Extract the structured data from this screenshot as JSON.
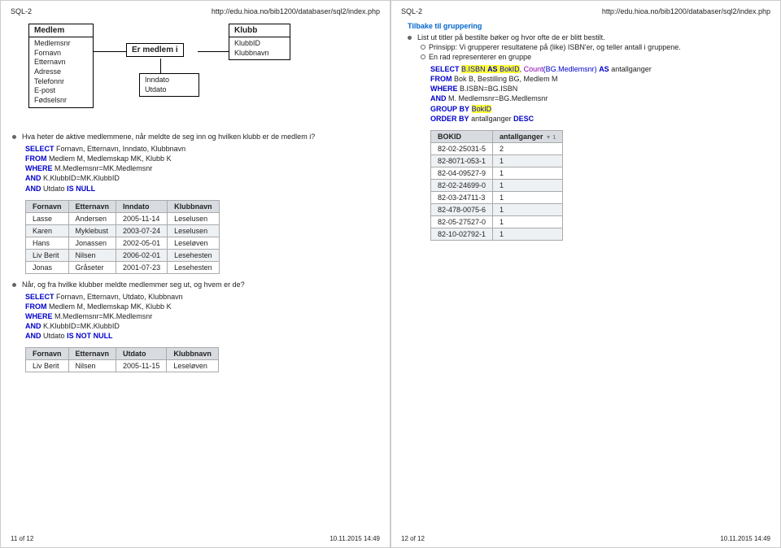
{
  "header": {
    "doc_title": "SQL-2",
    "url": "http://edu.hioa.no/bib1200/databaser/sql2/index.php"
  },
  "left": {
    "entity_medlem_title": "Medlem",
    "entity_medlem_attrs": "Medlemsnr\nFornavn\nEtternavn\nAdresse\nTelefonnr\nE-post\nFødselsnr",
    "entity_klubb_title": "Klubb",
    "entity_klubb_attrs": "KlubbID\nKlubbnavn",
    "relation_label": "Er medlem i",
    "relation_attrs": "Inndato\nUtdato",
    "q1_text": "Hva heter de aktive medlemmene, når meldte de seg inn og hvilken klubb er de medlem i?",
    "sql1": {
      "select": "Fornavn, Etternavn, Inndato, Klubbnavn",
      "from": "Medlem M, Medlemskap MK, Klubb K",
      "where": "M.Medlemsnr=MK.Medlemsnr",
      "and1": "K.KlubbID=MK.KlubbID",
      "and2": "Utdato"
    },
    "table1": {
      "cols": [
        "Fornavn",
        "Etternavn",
        "Inndato",
        "Klubbnavn"
      ],
      "rows": [
        [
          "Lasse",
          "Andersen",
          "2005-11-14",
          "Leselusen"
        ],
        [
          "Karen",
          "Myklebust",
          "2003-07-24",
          "Leselusen"
        ],
        [
          "Hans",
          "Jonassen",
          "2002-05-01",
          "Leseløven"
        ],
        [
          "Liv Berit",
          "Nilsen",
          "2006-02-01",
          "Lesehesten"
        ],
        [
          "Jonas",
          "Gråseter",
          "2001-07-23",
          "Lesehesten"
        ]
      ]
    },
    "q2_text": "Når, og fra hvilke klubber meldte medlemmer seg ut, og hvem er de?",
    "sql2": {
      "select": "Fornavn, Etternavn, Utdato, Klubbnavn",
      "from": "Medlem M, Medlemskap MK, Klubb K",
      "where": "M.Medlemsnr=MK.Medlemsnr",
      "and1": "K.KlubbID=MK.KlubbID",
      "and2": "Utdato"
    },
    "table2": {
      "cols": [
        "Fornavn",
        "Etternavn",
        "Utdato",
        "Klubbnavn"
      ],
      "rows": [
        [
          "Liv Berit",
          "Nilsen",
          "2005-11-15",
          "Leseløven"
        ]
      ]
    },
    "page_num": "11 of 12",
    "timestamp": "10.11.2015 14:49"
  },
  "right": {
    "back_link": "Tilbake til gruppering",
    "q1_text": "List ut titler på bestilte bøker og hvor ofte de er blitt bestilt.",
    "sub1": "Prinsipp: Vi grupperer resultatene på (like) ISBN'er, og teller antall i gruppene.",
    "sub2": "En rad representerer en gruppe",
    "sql": {
      "select_p1": "B.ISBN",
      "select_kw_as": "AS",
      "select_bokid": "BokID",
      "select_count": "Count",
      "select_arg": "(BG.Medlemsnr)",
      "select_as2": "antallganger",
      "from": "Bok B, Bestilling BG, Medlem M",
      "where": "B.ISBN=BG.ISBN",
      "and": "M. Medlemsnr=BG.Medlemsnr",
      "group": "BokID",
      "order": "antallganger",
      "desc": "DESC"
    },
    "table": {
      "cols": [
        "BOKID",
        "antallganger"
      ],
      "rows": [
        [
          "82-02-25031-5",
          "2"
        ],
        [
          "82-8071-053-1",
          "1"
        ],
        [
          "82-04-09527-9",
          "1"
        ],
        [
          "82-02-24699-0",
          "1"
        ],
        [
          "82-03-24711-3",
          "1"
        ],
        [
          "82-478-0075-6",
          "1"
        ],
        [
          "82-05-27527-0",
          "1"
        ],
        [
          "82-10-02792-1",
          "1"
        ]
      ]
    },
    "page_num": "12 of 12",
    "timestamp": "10.11.2015 14:49"
  }
}
